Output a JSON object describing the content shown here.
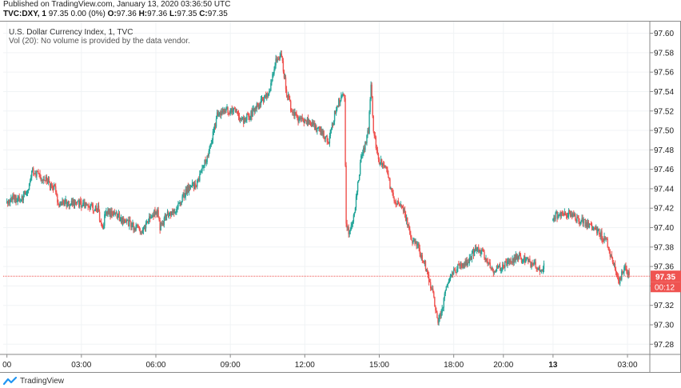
{
  "header": {
    "published": "Published on TradingView.com, January 13, 2020 03:36:50 UTC",
    "symbol": "TVC:DXY, 1",
    "last": "97.35",
    "change": "0.00 (0%)",
    "o_label": "O:",
    "o_value": "97.36",
    "h_label": "H:",
    "h_value": "97.36",
    "l_label": "L:",
    "l_value": "97.35",
    "c_label": "C:",
    "c_value": "97.35"
  },
  "legend": {
    "title": "U.S. Dollar Currency Index, 1, TVC",
    "volume_note": "Vol (20): No volume is provided by the data vendor."
  },
  "price_badge": {
    "price": "97.35",
    "countdown": "00:12"
  },
  "footer": {
    "brand": "TradingView"
  },
  "colors": {
    "up": "#26a69a",
    "down": "#ef5350",
    "grid": "#f0f3f5",
    "last_line": "#ef5350"
  },
  "chart_data": {
    "type": "candlestick",
    "interval": "1 minute",
    "y_ticks": [
      "97.60",
      "97.58",
      "97.56",
      "97.54",
      "97.52",
      "97.50",
      "97.48",
      "97.46",
      "97.44",
      "97.42",
      "97.40",
      "97.38",
      "97.36",
      "97.34",
      "97.32",
      "97.30",
      "97.28"
    ],
    "ylim": [
      97.272,
      97.612
    ],
    "x_ticks": [
      {
        "label": "00",
        "hour": 0
      },
      {
        "label": "03:00",
        "hour": 3
      },
      {
        "label": "06:00",
        "hour": 6
      },
      {
        "label": "09:00",
        "hour": 9
      },
      {
        "label": "12:00",
        "hour": 12
      },
      {
        "label": "15:00",
        "hour": 15
      },
      {
        "label": "18:00",
        "hour": 18
      },
      {
        "label": "20:00",
        "hour": 20
      },
      {
        "label": "13",
        "hour": 22
      },
      {
        "label": "03:00",
        "hour": 25
      }
    ],
    "xlim_hours": [
      -0.15,
      25.9
    ],
    "last_price": 97.35,
    "path": [
      [
        0.0,
        97.425
      ],
      [
        0.3,
        97.43
      ],
      [
        0.6,
        97.43
      ],
      [
        0.9,
        97.44
      ],
      [
        1.05,
        97.46
      ],
      [
        1.2,
        97.455
      ],
      [
        1.6,
        97.45
      ],
      [
        2.0,
        97.44
      ],
      [
        2.1,
        97.425
      ],
      [
        2.5,
        97.425
      ],
      [
        3.0,
        97.425
      ],
      [
        3.5,
        97.42
      ],
      [
        3.7,
        97.42
      ],
      [
        3.8,
        97.405
      ],
      [
        3.9,
        97.4
      ],
      [
        4.0,
        97.415
      ],
      [
        4.3,
        97.415
      ],
      [
        4.6,
        97.41
      ],
      [
        4.9,
        97.405
      ],
      [
        5.2,
        97.4
      ],
      [
        5.5,
        97.395
      ],
      [
        5.9,
        97.415
      ],
      [
        6.1,
        97.415
      ],
      [
        6.2,
        97.4
      ],
      [
        6.4,
        97.41
      ],
      [
        6.6,
        97.415
      ],
      [
        6.9,
        97.42
      ],
      [
        7.3,
        97.44
      ],
      [
        7.7,
        97.445
      ],
      [
        8.2,
        97.48
      ],
      [
        8.5,
        97.515
      ],
      [
        8.8,
        97.52
      ],
      [
        9.2,
        97.52
      ],
      [
        9.5,
        97.51
      ],
      [
        9.8,
        97.515
      ],
      [
        10.3,
        97.53
      ],
      [
        10.6,
        97.54
      ],
      [
        10.9,
        97.575
      ],
      [
        11.1,
        97.575
      ],
      [
        11.3,
        97.54
      ],
      [
        11.5,
        97.52
      ],
      [
        11.8,
        97.51
      ],
      [
        12.2,
        97.51
      ],
      [
        12.6,
        97.5
      ],
      [
        13.0,
        97.49
      ],
      [
        13.3,
        97.525
      ],
      [
        13.5,
        97.535
      ],
      [
        13.65,
        97.535
      ],
      [
        13.68,
        97.41
      ],
      [
        13.8,
        97.395
      ],
      [
        14.0,
        97.41
      ],
      [
        14.3,
        97.47
      ],
      [
        14.6,
        97.5
      ],
      [
        14.7,
        97.55
      ],
      [
        14.8,
        97.5
      ],
      [
        15.0,
        97.47
      ],
      [
        15.3,
        97.46
      ],
      [
        15.6,
        97.43
      ],
      [
        16.0,
        97.42
      ],
      [
        16.3,
        97.39
      ],
      [
        16.6,
        97.38
      ],
      [
        16.9,
        97.36
      ],
      [
        17.2,
        97.33
      ],
      [
        17.4,
        97.305
      ],
      [
        17.6,
        97.32
      ],
      [
        17.8,
        97.345
      ],
      [
        18.0,
        97.355
      ],
      [
        18.3,
        97.36
      ],
      [
        18.6,
        97.365
      ],
      [
        19.0,
        97.38
      ],
      [
        19.3,
        97.37
      ],
      [
        19.6,
        97.355
      ],
      [
        20.0,
        97.36
      ],
      [
        20.3,
        97.365
      ],
      [
        20.6,
        97.37
      ],
      [
        21.0,
        97.365
      ],
      [
        21.4,
        97.36
      ],
      [
        21.6,
        97.355
      ],
      [
        22.0,
        97.41
      ],
      [
        22.3,
        97.415
      ],
      [
        22.6,
        97.415
      ],
      [
        22.9,
        97.41
      ],
      [
        23.3,
        97.405
      ],
      [
        23.6,
        97.4
      ],
      [
        23.9,
        97.395
      ],
      [
        24.2,
        97.385
      ],
      [
        24.5,
        97.36
      ],
      [
        24.7,
        97.345
      ],
      [
        24.9,
        97.36
      ],
      [
        25.1,
        97.35
      ]
    ],
    "gap_hours": [
      21.65,
      21.98
    ],
    "seed": 12
  }
}
